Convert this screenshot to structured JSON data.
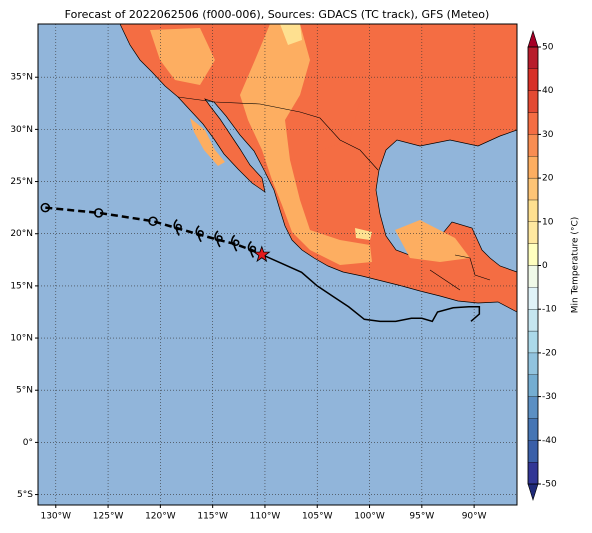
{
  "chart_data": {
    "type": "map",
    "title": "Forecast of 2022062506 (f000-006), Sources: GDACS (TC track), GFS (Meteo)",
    "xlim": [
      -131.7,
      -85.9
    ],
    "ylim": [
      -6.0,
      40.1
    ],
    "xticks": [
      {
        "value": -130,
        "label": "130°W"
      },
      {
        "value": -125,
        "label": "125°W"
      },
      {
        "value": -120,
        "label": "120°W"
      },
      {
        "value": -115,
        "label": "115°W"
      },
      {
        "value": -110,
        "label": "110°W"
      },
      {
        "value": -105,
        "label": "105°W"
      },
      {
        "value": -100,
        "label": "100°W"
      },
      {
        "value": -95,
        "label": "95°W"
      },
      {
        "value": -90,
        "label": "90°W"
      }
    ],
    "yticks": [
      {
        "value": -5,
        "label": "5°S"
      },
      {
        "value": 0,
        "label": "0°"
      },
      {
        "value": 5,
        "label": "5°N"
      },
      {
        "value": 10,
        "label": "10°N"
      },
      {
        "value": 15,
        "label": "15°N"
      },
      {
        "value": 20,
        "label": "20°N"
      },
      {
        "value": 25,
        "label": "25°N"
      },
      {
        "value": 30,
        "label": "30°N"
      },
      {
        "value": 35,
        "label": "35°N"
      }
    ],
    "grid": true,
    "track": {
      "lon": [
        -131,
        -125.9,
        -120.7,
        -118.3,
        -116.2,
        -114.4,
        -112.8,
        -111.2,
        -110.3
      ],
      "lat": [
        22.5,
        22.0,
        21.2,
        20.5,
        19.9,
        19.4,
        19.0,
        18.4,
        18.0
      ]
    },
    "circles": {
      "lon": [
        -131,
        -125.9,
        -120.7
      ],
      "lat": [
        22.5,
        22.0,
        21.2
      ]
    },
    "storm_symbols": {
      "lon": [
        -118.3,
        -116.2,
        -114.4,
        -112.8,
        -111.2
      ],
      "lat": [
        20.5,
        19.9,
        19.4,
        19.0,
        18.4
      ]
    },
    "current_position": {
      "lon": [
        -110.3
      ],
      "lat": [
        18.0
      ],
      "color": "#e31a1c"
    },
    "observed_track": {
      "lon": [
        -110.3,
        -108.5,
        -106.5,
        -105,
        -103.5,
        -102,
        -100.5,
        -99,
        -97.5,
        -96,
        -95,
        -94,
        -93.5,
        -92,
        -90.5,
        -89.5,
        -89.5,
        -90.3
      ],
      "lat": [
        18.0,
        17.2,
        16.3,
        15.0,
        14.0,
        13.0,
        11.8,
        11.6,
        11.6,
        11.9,
        11.9,
        11.6,
        12.5,
        12.9,
        13.0,
        13.0,
        12.3,
        11.6
      ]
    },
    "colorbar": {
      "label": "Min Temperature (°C)",
      "lim": [
        -50,
        50
      ],
      "ticks": [
        -50,
        -40,
        -30,
        -20,
        -10,
        0,
        10,
        20,
        30,
        40,
        50
      ],
      "colors": [
        "#1f2a78",
        "#313695",
        "#3a5fa8",
        "#4575b4",
        "#5b8fc3",
        "#74add1",
        "#91c3de",
        "#abd9e9",
        "#c6e6f0",
        "#e0f3f8",
        "#f0f9e8",
        "#ffffbf",
        "#fee8a0",
        "#fee090",
        "#fdc476",
        "#fdae61",
        "#f88d52",
        "#f46d43",
        "#e34a33",
        "#d73027",
        "#b81d2c",
        "#a50026"
      ]
    }
  }
}
